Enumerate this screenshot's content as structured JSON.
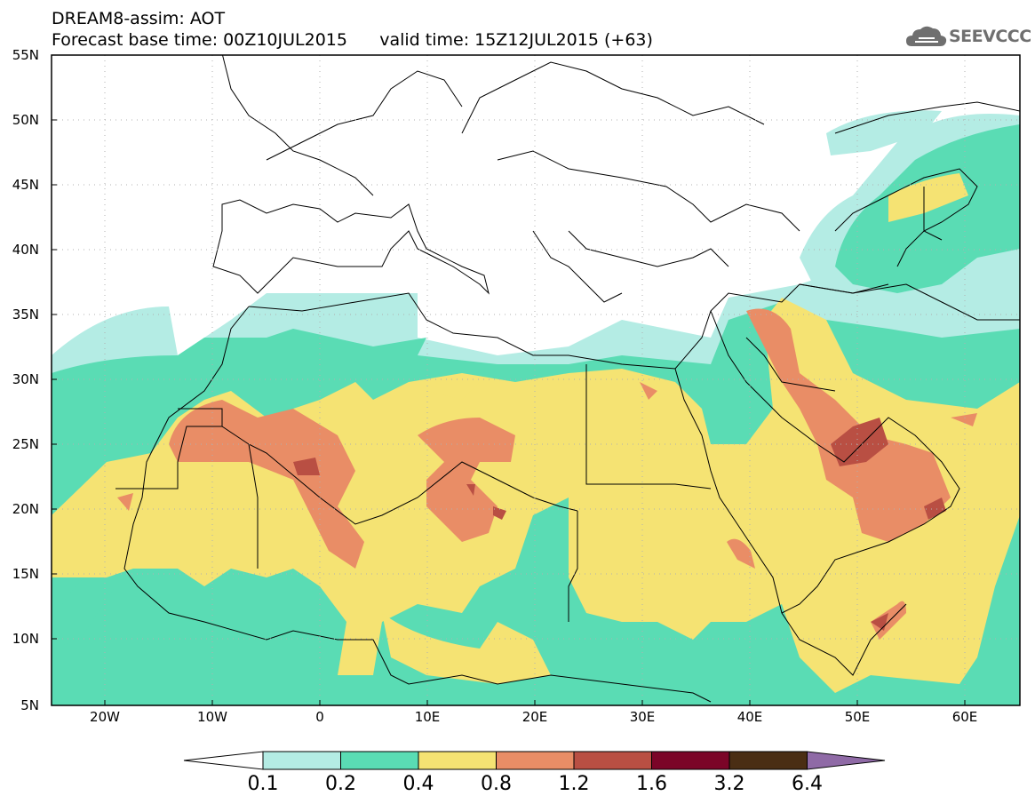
{
  "header": {
    "title": "DREAM8-assim: AOT",
    "base_time_label": "Forecast base time: 00Z10JUL2015",
    "valid_time_label": "valid time: 15Z12JUL2015 (+63)"
  },
  "logo": {
    "text": "SEEVCCC"
  },
  "map": {
    "lon_range": [
      -25,
      65
    ],
    "lat_range": [
      5,
      55
    ],
    "lat_ticks": [
      "5N",
      "10N",
      "15N",
      "20N",
      "25N",
      "30N",
      "35N",
      "40N",
      "45N",
      "50N",
      "55N"
    ],
    "lon_ticks": [
      "20W",
      "10W",
      "0",
      "10E",
      "20E",
      "30E",
      "40E",
      "50E",
      "60E"
    ]
  },
  "colorbar": {
    "levels": [
      "0.1",
      "0.2",
      "0.4",
      "0.8",
      "1.2",
      "1.6",
      "3.2",
      "6.4"
    ],
    "colors": [
      "#b4ece4",
      "#5adcb4",
      "#f5e373",
      "#e98d66",
      "#b94f43",
      "#7b0528",
      "#4a2e14",
      "#8f6aa6"
    ]
  }
}
